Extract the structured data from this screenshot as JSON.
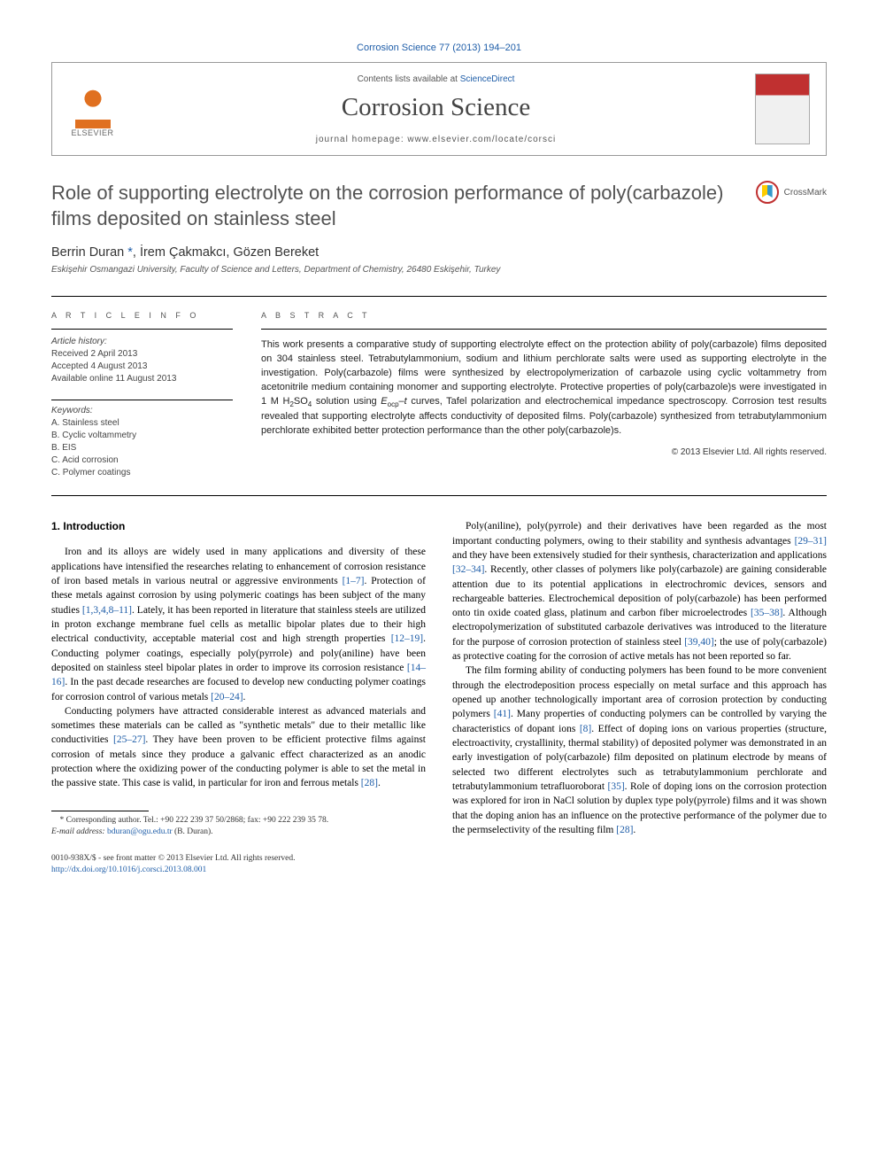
{
  "journal_ref": "Corrosion Science 77 (2013) 194–201",
  "header": {
    "contents_prefix": "Contents lists available at ",
    "contents_link": "ScienceDirect",
    "journal_name": "Corrosion Science",
    "homepage_prefix": "journal homepage: ",
    "homepage_url": "www.elsevier.com/locate/corsci",
    "publisher": "ELSEVIER"
  },
  "title": "Role of supporting electrolyte on the corrosion performance of poly(carbazole) films deposited on stainless steel",
  "crossmark_label": "CrossMark",
  "authors_html": "Berrin Duran <a>*</a>, İrem Çakmakcı, Gözen Bereket",
  "affiliation": "Eskişehir Osmangazi University, Faculty of Science and Letters, Department of Chemistry, 26480 Eskişehir, Turkey",
  "article_info": {
    "heading": "A R T I C L E   I N F O",
    "history_label": "Article history:",
    "history": [
      "Received 2 April 2013",
      "Accepted 4 August 2013",
      "Available online 11 August 2013"
    ],
    "keywords_label": "Keywords:",
    "keywords": [
      "A. Stainless steel",
      "B. Cyclic voltammetry",
      "B. EIS",
      "C. Acid corrosion",
      "C. Polymer coatings"
    ]
  },
  "abstract": {
    "heading": "A B S T R A C T",
    "text": "This work presents a comparative study of supporting electrolyte effect on the protection ability of poly(carbazole) films deposited on 304 stainless steel. Tetrabutylammonium, sodium and lithium perchlorate salts were used as supporting electrolyte in the investigation. Poly(carbazole) films were synthesized by electropolymerization of carbazole using cyclic voltammetry from acetonitrile medium containing monomer and supporting electrolyte. Protective properties of poly(carbazole)s were investigated in 1 M H₂SO₄ solution using E_ocp–t curves, Tafel polarization and electrochemical impedance spectroscopy. Corrosion test results revealed that supporting electrolyte affects conductivity of deposited films. Poly(carbazole) synthesized from tetrabutylammonium perchlorate exhibited better protection performance than the other poly(carbazole)s.",
    "copyright": "© 2013 Elsevier Ltd. All rights reserved."
  },
  "body": {
    "section_number": "1.",
    "section_title": "Introduction",
    "p1": "Iron and its alloys are widely used in many applications and diversity of these applications have intensified the researches relating to enhancement of corrosion resistance of iron based metals in various neutral or aggressive environments [1–7]. Protection of these metals against corrosion by using polymeric coatings has been subject of the many studies [1,3,4,8–11]. Lately, it has been reported in literature that stainless steels are utilized in proton exchange membrane fuel cells as metallic bipolar plates due to their high electrical conductivity, acceptable material cost and high strength properties [12–19]. Conducting polymer coatings, especially poly(pyrrole) and poly(aniline) have been deposited on stainless steel bipolar plates in order to improve its corrosion resistance [14–16]. In the past decade researches are focused to develop new conducting polymer coatings for corrosion control of various metals [20–24].",
    "p2": "Conducting polymers have attracted considerable interest as advanced materials and sometimes these materials can be called as \"synthetic metals\" due to their metallic like conductivities [25–27]. They have been proven to be efficient protective films against corrosion of metals since they produce a galvanic effect characterized as an anodic protection where the oxidizing power of the conducting polymer is able to set the metal in the passive state. This case is valid, in particular for iron and ferrous metals [28].",
    "p3": "Poly(aniline), poly(pyrrole) and their derivatives have been regarded as the most important conducting polymers, owing to their stability and synthesis advantages [29–31] and they have been extensively studied for their synthesis, characterization and applications [32–34]. Recently, other classes of polymers like poly(carbazole) are gaining considerable attention due to its potential applications in electrochromic devices, sensors and rechargeable batteries. Electrochemical deposition of poly(carbazole) has been performed onto tin oxide coated glass, platinum and carbon fiber microelectrodes [35–38]. Although electropolymerization of substituted carbazole derivatives was introduced to the literature for the purpose of corrosion protection of stainless steel [39,40]; the use of poly(carbazole) as protective coating for the corrosion of active metals has not been reported so far.",
    "p4": "The film forming ability of conducting polymers has been found to be more convenient through the electrodeposition process especially on metal surface and this approach has opened up another technologically important area of corrosion protection by conducting polymers [41]. Many properties of conducting polymers can be controlled by varying the characteristics of dopant ions [8]. Effect of doping ions on various properties (structure, electroactivity, crystallinity, thermal stability) of deposited polymer was demonstrated in an early investigation of poly(carbazole) film deposited on platinum electrode by means of selected two different electrolytes such as tetrabutylammonium perchlorate and tetrabutylammonium tetrafluoroborat [35]. Role of doping ions on the corrosion protection was explored for iron in NaCl solution by duplex type poly(pyrrole) films and it was shown that the doping anion has an influence on the protective performance of the polymer due to the permselectivity of the resulting film [28]."
  },
  "footnote": {
    "text_prefix": "* Corresponding author. Tel.: +90 222 239 37 50/2868; fax: +90 222 239 35 78.",
    "email_label": "E-mail address:",
    "email": "bduran@ogu.edu.tr",
    "email_suffix": "(B. Duran)."
  },
  "bottom": {
    "issn_line": "0010-938X/$ - see front matter © 2013 Elsevier Ltd. All rights reserved.",
    "doi": "http://dx.doi.org/10.1016/j.corsci.2013.08.001"
  },
  "refs": {
    "r1": "[1–7]",
    "r2": "[1,3,4,8–11]",
    "r3": "[12–19]",
    "r4": "[14–16]",
    "r5": "[20–24]",
    "r6": "[25–27]",
    "r7": "[28]",
    "r8": "[29–31]",
    "r9": "[32–34]",
    "r10": "[35–38]",
    "r11": "[39,40]",
    "r12": "[41]",
    "r13": "[8]",
    "r14": "[35]",
    "r15": "[28]"
  },
  "colors": {
    "link": "#1e5da8",
    "publisher_orange": "#e07020",
    "text": "#000000",
    "muted": "#555555"
  }
}
